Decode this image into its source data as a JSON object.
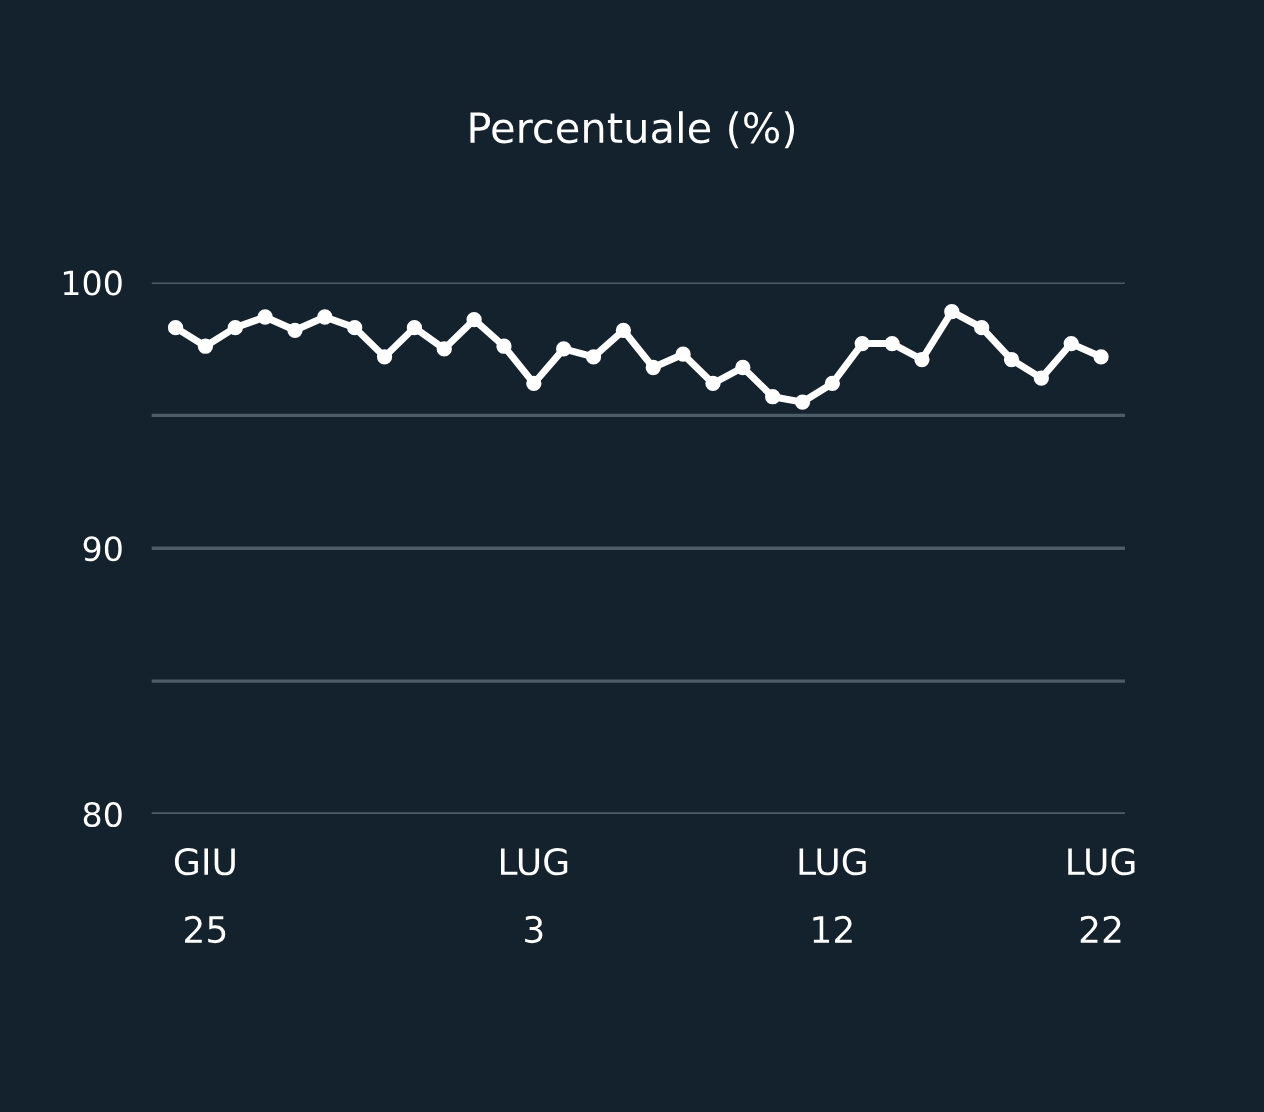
{
  "chart_data": {
    "type": "line",
    "title": "Percentuale (%)",
    "categories": [
      null,
      "GIU\n25",
      null,
      null,
      null,
      null,
      null,
      null,
      null,
      null,
      null,
      null,
      "LUG\n3",
      null,
      null,
      null,
      null,
      null,
      null,
      null,
      null,
      null,
      "LUG\n12",
      null,
      null,
      null,
      null,
      null,
      null,
      null,
      null,
      "LUG\n22"
    ],
    "series": [
      {
        "color": "#ffffff",
        "values": [
          98.3,
          97.6,
          98.3,
          98.7,
          98.2,
          98.7,
          98.3,
          97.2,
          98.3,
          97.5,
          98.6,
          97.6,
          96.2,
          97.5,
          97.2,
          98.2,
          96.8,
          97.3,
          96.2,
          96.8,
          95.7,
          95.5,
          96.2,
          97.7,
          97.7,
          97.1,
          98.9,
          98.3,
          97.1,
          96.4,
          97.7,
          97.2
        ]
      }
    ],
    "ylim": [
      80,
      100
    ],
    "yticks": [
      100,
      {
        "value": 95,
        "label": null
      },
      90,
      {
        "value": 85,
        "label": null
      },
      80
    ],
    "grid": "y",
    "marker": "circle",
    "line_style": "solid",
    "legend": false
  }
}
